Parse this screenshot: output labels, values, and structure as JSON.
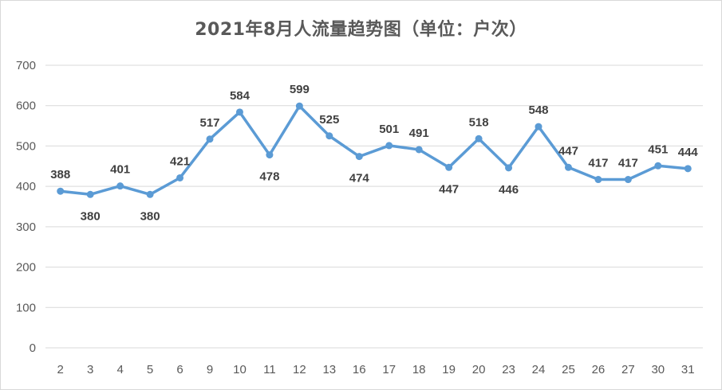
{
  "chart_data": {
    "type": "line",
    "title": "2021年8月人流量趋势图（单位：户次）",
    "xlabel": "",
    "ylabel": "",
    "ylim": [
      0,
      700
    ],
    "yticks": [
      0,
      100,
      200,
      300,
      400,
      500,
      600,
      700
    ],
    "grid": true,
    "legend": "none",
    "categories": [
      "2",
      "3",
      "4",
      "5",
      "6",
      "9",
      "10",
      "11",
      "12",
      "13",
      "16",
      "17",
      "18",
      "19",
      "20",
      "23",
      "24",
      "25",
      "26",
      "27",
      "30",
      "31"
    ],
    "series": [
      {
        "values": [
          388,
          380,
          401,
          380,
          421,
          517,
          584,
          478,
          599,
          525,
          474,
          501,
          491,
          447,
          518,
          446,
          548,
          447,
          417,
          417,
          451,
          444
        ],
        "color": "#5b9bd5"
      }
    ]
  }
}
